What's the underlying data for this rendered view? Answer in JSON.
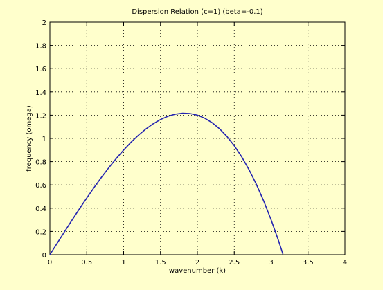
{
  "chart_data": {
    "type": "line",
    "title": "Dispersion Relation (c=1) (beta=-0.1)",
    "x_label": "wavenumber (k)",
    "y_label": "frequency (omega)",
    "x": [
      0,
      0.1,
      0.2,
      0.3,
      0.4,
      0.5,
      0.6,
      0.7,
      0.8,
      0.9,
      1.0,
      1.1,
      1.2,
      1.3,
      1.4,
      1.5,
      1.6,
      1.7,
      1.8,
      1.9,
      2.0,
      2.1,
      2.2,
      2.3,
      2.4,
      2.5,
      2.6,
      2.7,
      2.8,
      2.9,
      3.0,
      3.1,
      3.16
    ],
    "series": [
      {
        "color": "#2424b0",
        "values": [
          0,
          0.0999,
          0.1992,
          0.2973,
          0.3936,
          0.4875,
          0.5784,
          0.6657,
          0.7488,
          0.8271,
          0.9,
          0.9669,
          1.0272,
          1.0803,
          1.1256,
          1.1625,
          1.1904,
          1.2087,
          1.2168,
          1.2141,
          1.2,
          1.1739,
          1.1352,
          1.0833,
          1.0176,
          0.9375,
          0.8424,
          0.7317,
          0.6048,
          0.4611,
          0.3,
          0.1209,
          0.0046
        ]
      }
    ],
    "xlim": [
      0,
      4
    ],
    "xticks": [
      0,
      0.5,
      1,
      1.5,
      2,
      2.5,
      3,
      3.5,
      4
    ],
    "ylim": [
      0,
      2
    ],
    "yticks": [
      0,
      0.2,
      0.4,
      0.6,
      0.8,
      1,
      1.2,
      1.4,
      1.6,
      1.8,
      2
    ],
    "grid": true
  }
}
